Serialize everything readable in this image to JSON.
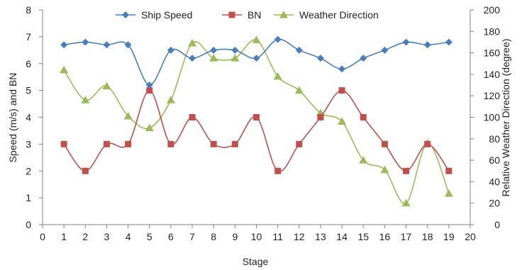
{
  "chart_data": {
    "type": "line",
    "xlabel": "Stage",
    "ylabel": "Speed (m/s) and BN",
    "y2label": "Relative Weather Direction (degree)",
    "xlim": [
      0,
      20
    ],
    "ylim": [
      0,
      8
    ],
    "y2lim": [
      0,
      200
    ],
    "x_ticks": [
      0,
      1,
      2,
      3,
      4,
      5,
      6,
      7,
      8,
      9,
      10,
      11,
      12,
      13,
      14,
      15,
      16,
      17,
      18,
      19,
      20
    ],
    "y_ticks": [
      0,
      1,
      2,
      3,
      4,
      5,
      6,
      7,
      8
    ],
    "y2_ticks": [
      0,
      20,
      40,
      60,
      80,
      100,
      120,
      140,
      160,
      180,
      200
    ],
    "grid": false,
    "legend_position": "top",
    "x": [
      1,
      2,
      3,
      4,
      5,
      6,
      7,
      8,
      9,
      10,
      11,
      12,
      13,
      14,
      15,
      16,
      17,
      18,
      19
    ],
    "series": [
      {
        "name": "Ship Speed",
        "axis": "left",
        "marker": "diamond",
        "color": "#4a7ebb",
        "smooth": true,
        "values": [
          6.7,
          6.8,
          6.7,
          6.7,
          5.2,
          6.5,
          6.2,
          6.5,
          6.5,
          6.2,
          6.9,
          6.5,
          6.2,
          5.8,
          6.2,
          6.5,
          6.8,
          6.7,
          6.8
        ]
      },
      {
        "name": "BN",
        "axis": "left",
        "marker": "square",
        "color": "#c0504d",
        "smooth": true,
        "values": [
          3,
          2,
          3,
          3,
          5,
          3,
          4,
          3,
          3,
          4,
          2,
          3,
          4,
          5,
          4,
          3,
          2,
          3,
          2
        ]
      },
      {
        "name": "Weather Direction",
        "axis": "right",
        "marker": "triangle",
        "color": "#9bbb59",
        "smooth": true,
        "values": [
          144,
          116,
          129,
          101,
          90,
          116,
          169,
          155,
          155,
          172,
          138,
          125,
          104,
          96,
          60,
          51,
          20,
          76,
          29
        ]
      }
    ]
  }
}
